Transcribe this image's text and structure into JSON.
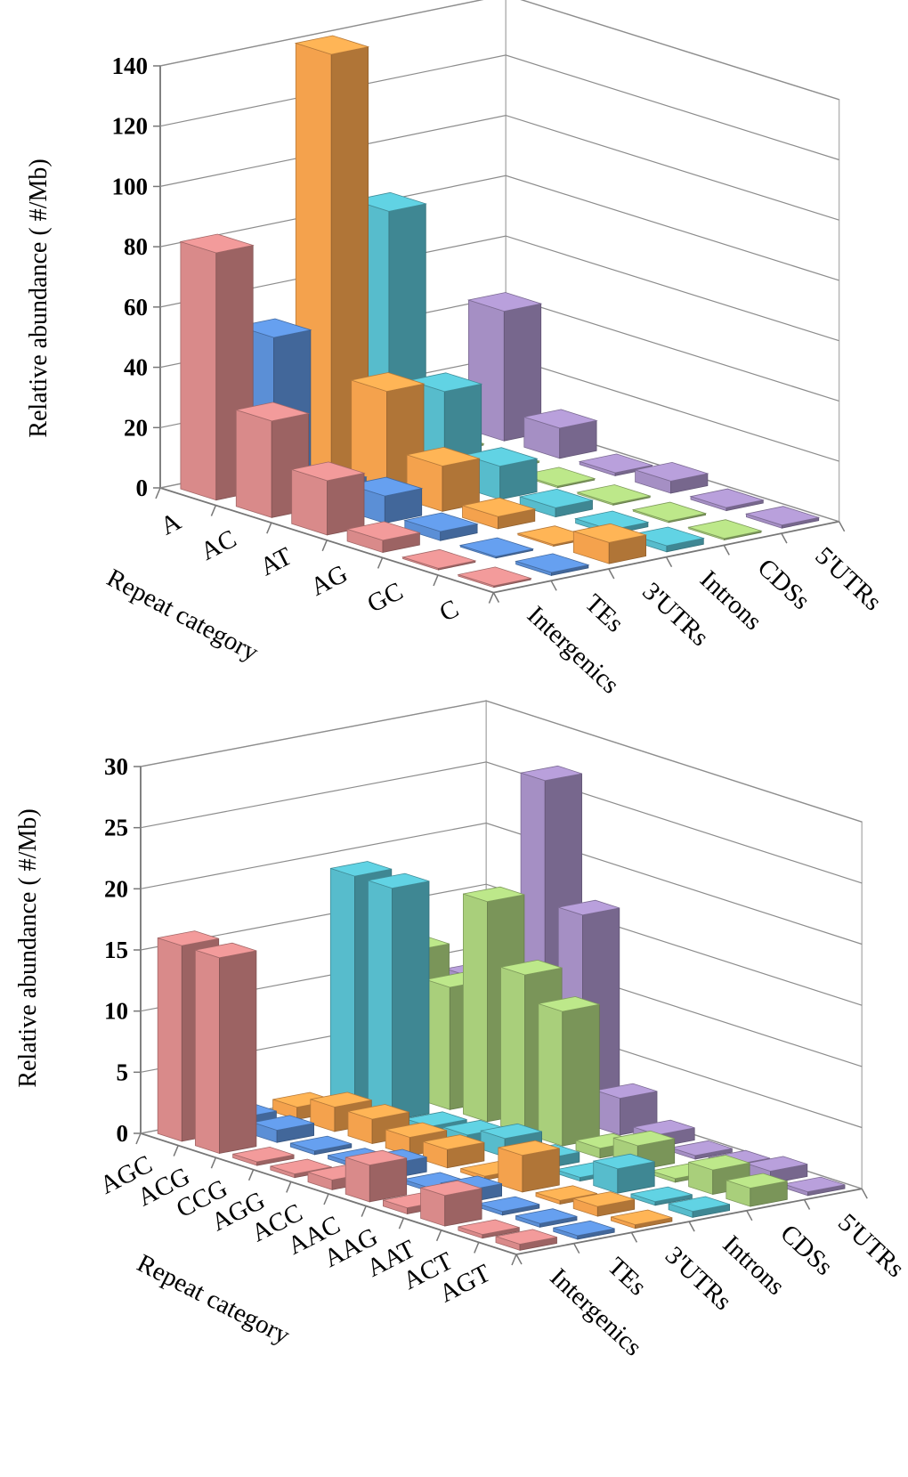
{
  "chart_data": [
    {
      "type": "bar3d",
      "ylabel": "Relative abundance ( #/Mb)",
      "ylim": [
        0,
        140
      ],
      "yticks": [
        "0",
        "20",
        "40",
        "60",
        "80",
        "100",
        "120",
        "140"
      ],
      "category_axis_title": "Repeat category",
      "categories": [
        "A",
        "AC",
        "AT",
        "AG",
        "GC",
        "C"
      ],
      "series": [
        {
          "name": "Intergenics",
          "color": "#d98a8a",
          "values": [
            82,
            32,
            18,
            4,
            0.5,
            0.5
          ]
        },
        {
          "name": "TEs",
          "color": "#5b8fd6",
          "values": [
            50,
            7,
            9,
            3,
            0.5,
            1
          ]
        },
        {
          "name": "3'UTRs",
          "color": "#f4a24d",
          "values": [
            140,
            34,
            15,
            4,
            0.5,
            7
          ]
        },
        {
          "name": "Introns",
          "color": "#57bccc",
          "values": [
            84,
            30,
            11,
            3,
            1.5,
            2
          ]
        },
        {
          "name": "CDSs",
          "color": "#a9cf7b",
          "values": [
            0.5,
            0.5,
            0.5,
            0.5,
            0.5,
            0.5
          ]
        },
        {
          "name": "5'UTRs",
          "color": "#a58fc4",
          "values": [
            43,
            10,
            1,
            4,
            1,
            1
          ]
        }
      ]
    },
    {
      "type": "bar3d",
      "ylabel": "Relative abundance ( #/Mb)",
      "ylim": [
        0,
        30
      ],
      "yticks": [
        "0",
        "5",
        "10",
        "15",
        "20",
        "25",
        "30"
      ],
      "category_axis_title": "Repeat category",
      "categories": [
        "AGC",
        "ACG",
        "CCG",
        "AGG",
        "ACC",
        "AAC",
        "AAG",
        "AAT",
        "ACT",
        "AGT"
      ],
      "series": [
        {
          "name": "Intergenics",
          "color": "#d98a8a",
          "values": [
            16,
            16,
            0.3,
            0.3,
            0.8,
            3,
            0.5,
            2.5,
            0.3,
            0.5
          ]
        },
        {
          "name": "TEs",
          "color": "#5b8fd6",
          "values": [
            1,
            1,
            0.3,
            0.3,
            1.2,
            0.3,
            1,
            0.3,
            0.3,
            0.3
          ]
        },
        {
          "name": "3'UTRs",
          "color": "#f4a24d",
          "values": [
            1,
            2,
            2,
            1.5,
            1.5,
            0.3,
            3,
            0.3,
            0.8,
            0.3
          ]
        },
        {
          "name": "Introns",
          "color": "#57bccc",
          "values": [
            19,
            19,
            0.5,
            0.8,
            1.5,
            0.8,
            0.3,
            2,
            0.3,
            0.5
          ]
        },
        {
          "name": "CDSs",
          "color": "#a9cf7b",
          "values": [
            12,
            10,
            18,
            13,
            11,
            0.8,
            2,
            0.3,
            2,
            1.5
          ]
        },
        {
          "name": "5'UTRs",
          "color": "#a58fc4",
          "values": [
            9,
            5,
            27,
            17,
            3,
            1,
            0.3,
            0.5,
            1,
            0.3
          ]
        }
      ]
    }
  ]
}
